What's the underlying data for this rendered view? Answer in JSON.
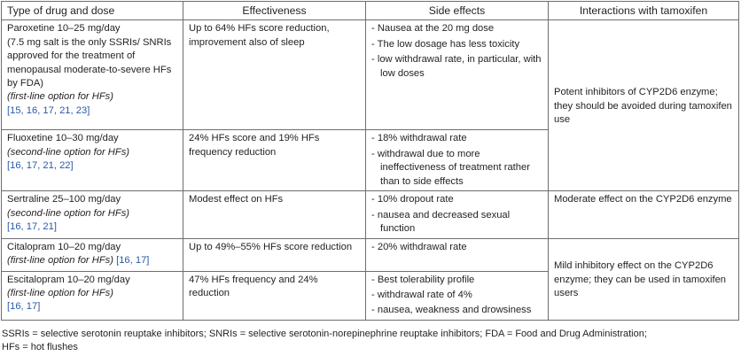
{
  "headers": [
    "Type of drug and dose",
    "Effectiveness",
    "Side effects",
    "Interactions with tamoxifen"
  ],
  "rows": [
    {
      "drug": "Paroxetine",
      "dose": " 10–25 mg/day",
      "extra": "(7.5 mg salt is the only SSRIs/ SNRIs approved for the treatment of menopausal moderate-to-severe HFs by FDA)",
      "line": "(first-line option for HFs)",
      "refs": "[15, 16, 17, 21, 23]",
      "effectiveness": "Up to 64% HFs score reduction, improvement also of sleep",
      "side_effects": [
        "Nausea at the 20 mg dose",
        "The low dosage has less toxicity",
        "low withdrawal rate, in particular, with low doses"
      ]
    },
    {
      "drug": "Fluoxetine",
      "dose": " 10–30 mg/day",
      "line": "(second-line option for HFs)",
      "refs": "[16, 17, 21, 22]",
      "effectiveness": "24% HFs score and 19% HFs frequency reduction",
      "side_effects": [
        "18% withdrawal rate",
        "withdrawal due to more ineffectiveness of treatment rather than to side effects"
      ]
    },
    {
      "drug": "Sertraline",
      "dose": " 25–100 mg/day",
      "line": "(second-line option for HFs)",
      "refs": "[16, 17, 21]",
      "effectiveness": "Modest effect on HFs",
      "side_effects": [
        "10% dropout rate",
        "nausea and decreased sexual function"
      ]
    },
    {
      "drug": "Citalopram",
      "dose": " 10–20 mg/day",
      "line": "(first-line option for HFs)",
      "refs": "[16, 17]",
      "effectiveness": "Up to 49%–55% HFs score reduction",
      "side_effects": [
        "20% withdrawal rate"
      ]
    },
    {
      "drug": "Escitalopram",
      "dose": " 10–20 mg/day",
      "line": "(first-line option for HFs)",
      "refs": "[16, 17]",
      "effectiveness": "47% HFs frequency and 24% reduction",
      "side_effects": [
        "Best tolerability profile",
        "withdrawal rate of 4%",
        "nausea, weakness and drowsiness"
      ]
    }
  ],
  "interactions": [
    "Potent inhibitors of CYP2D6 enzyme; they should be avoided during tamoxifen use",
    "Moderate effect on the CYP2D6 enzyme",
    "Mild inhibitory effect on the CYP2D6 enzyme; they can be used in tamoxifen users"
  ],
  "footnote": [
    "SSRIs = selective serotonin reuptake inhibitors; SNRIs = selective serotonin-norepinephrine reuptake inhibitors; FDA = Food and Drug Administration;",
    "HFs = hot flushes"
  ],
  "colors": {
    "text": "#231f20",
    "border": "#6d6e71",
    "reference_link": "#2b59a6"
  }
}
